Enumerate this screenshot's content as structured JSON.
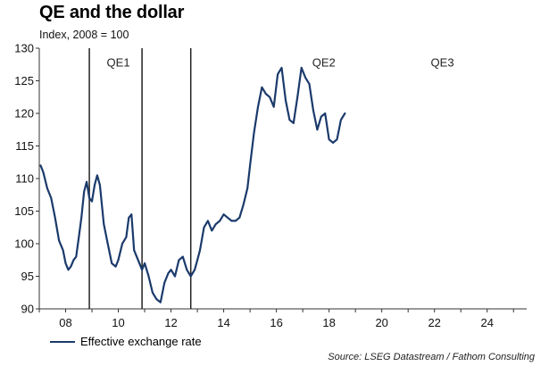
{
  "chart_data": {
    "type": "line",
    "title": "QE and the dollar",
    "subtitle": "Index, 2008 = 100",
    "xlabel": "",
    "ylabel": "",
    "xlim": [
      2007,
      2025.5
    ],
    "ylim": [
      90,
      130
    ],
    "y_ticks": [
      90,
      95,
      100,
      105,
      110,
      115,
      120,
      125,
      130
    ],
    "x_ticks": [
      {
        "value": 2008,
        "label": "08"
      },
      {
        "value": 2010,
        "label": "10"
      },
      {
        "value": 2012,
        "label": "12"
      },
      {
        "value": 2014,
        "label": "14"
      },
      {
        "value": 2016,
        "label": "16"
      },
      {
        "value": 2018,
        "label": "18"
      },
      {
        "value": 2020,
        "label": "20"
      },
      {
        "value": 2022,
        "label": "22"
      },
      {
        "value": 2024,
        "label": "24"
      }
    ],
    "grid": false,
    "vertical_markers": [
      2008.9,
      2010.9,
      2012.75
    ],
    "annotations": [
      {
        "text": "QE1",
        "x": 2010.0,
        "y": 128
      },
      {
        "text": "QE2",
        "x": 2017.8,
        "y": 128
      },
      {
        "text": "QE3",
        "x": 2022.3,
        "y": 128
      }
    ],
    "series": [
      {
        "name": "Effective exchange rate",
        "color": "#1b3a6b",
        "x": [
          2007.05,
          2007.15,
          2007.3,
          2007.45,
          2007.6,
          2007.75,
          2007.9,
          2008.0,
          2008.1,
          2008.2,
          2008.3,
          2008.4,
          2008.5,
          2008.6,
          2008.7,
          2008.8,
          2008.9,
          2009.0,
          2009.1,
          2009.2,
          2009.3,
          2009.45,
          2009.6,
          2009.75,
          2009.9,
          2010.0,
          2010.15,
          2010.3,
          2010.4,
          2010.5,
          2010.6,
          2010.75,
          2010.9,
          2011.0,
          2011.15,
          2011.3,
          2011.45,
          2011.6,
          2011.75,
          2011.9,
          2012.0,
          2012.15,
          2012.3,
          2012.45,
          2012.6,
          2012.75,
          2012.9,
          2013.0,
          2013.1,
          2013.25,
          2013.4,
          2013.55,
          2013.7,
          2013.85,
          2014.0,
          2014.15,
          2014.3,
          2014.45,
          2014.6,
          2014.75,
          2014.9,
          2015.0,
          2015.15,
          2015.3,
          2015.45,
          2015.6,
          2015.75,
          2015.9,
          2016.05,
          2016.2,
          2016.35,
          2016.5,
          2016.65,
          2016.8,
          2016.95,
          2017.1,
          2017.25,
          2017.4,
          2017.55,
          2017.7,
          2017.85,
          2018.0,
          2018.15,
          2018.3,
          2018.45,
          2018.6
        ],
        "values": [
          112,
          111,
          108.5,
          107,
          104,
          100.5,
          99,
          97,
          96,
          96.5,
          97.5,
          98,
          101,
          104,
          108,
          109.5,
          107,
          106.5,
          109,
          110.5,
          109,
          103,
          100,
          97,
          96.5,
          97.5,
          100,
          101,
          104,
          104.5,
          99,
          97.5,
          96,
          97,
          95,
          92.5,
          91.5,
          91,
          94,
          95.5,
          96,
          95,
          97.5,
          98,
          96,
          95,
          96,
          97.5,
          99,
          102.5,
          103.5,
          102,
          103,
          103.5,
          104.5,
          104,
          103.5,
          103.5,
          104,
          106,
          108.5,
          112,
          117,
          121,
          124,
          123,
          122.5,
          121,
          126,
          127,
          122,
          119,
          118.5,
          122.5,
          127,
          125.5,
          124.5,
          120.5,
          117.5,
          119.5,
          120,
          116,
          115.5,
          116,
          119,
          120
        ]
      }
    ],
    "legend_position": "bottom-left"
  },
  "source_note": "Source: LSEG Datastream / Fathom Consulting"
}
